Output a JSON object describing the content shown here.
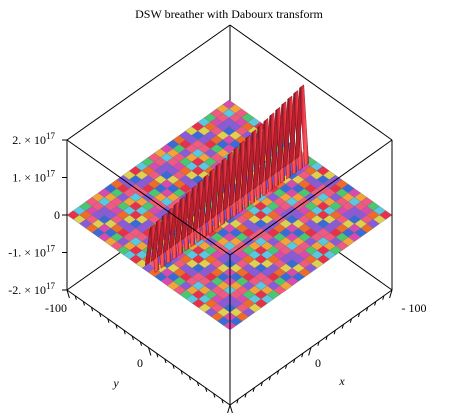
{
  "chart_data": {
    "type": "surface",
    "title": "DSW breather with Dabourx transform",
    "xlabel": "x",
    "ylabel": "y",
    "zlabel": "",
    "x_range": [
      -100,
      100
    ],
    "y_range": [
      -100,
      100
    ],
    "z_range": [
      -2e+17,
      2e+17
    ],
    "x_ticks": [
      "0",
      "- 100"
    ],
    "y_ticks": [
      "-100",
      "0"
    ],
    "z_ticks": [
      "2. × 10",
      "1. × 10",
      "0",
      "-1. × 10",
      "-2. × 10"
    ],
    "z_tick_exponent": "17",
    "surface": {
      "baseline_z": 0,
      "ridge_peak_z": 2e+17,
      "ridge_count": 26,
      "colors": [
        "#e8304a",
        "#f06a2a",
        "#f2a33a",
        "#5ac8e0",
        "#8a5ad8",
        "#d84ab0",
        "#4ac870",
        "#e0d050",
        "#3a6ad8",
        "#f05a80"
      ]
    },
    "grid": false,
    "legend": "none"
  }
}
